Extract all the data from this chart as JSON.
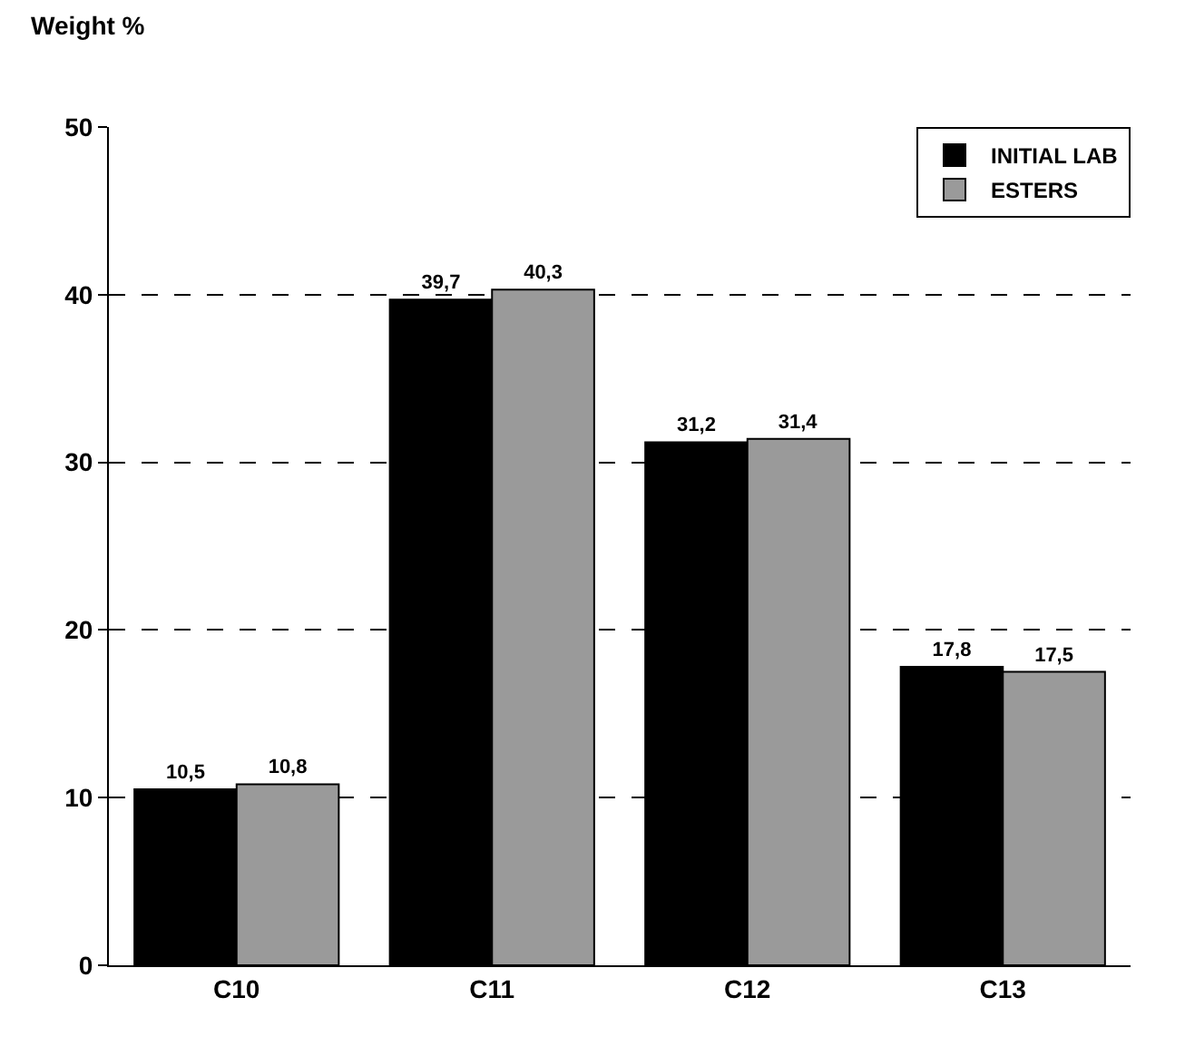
{
  "chart_data": {
    "type": "bar",
    "ylabel": "Weight %",
    "categories": [
      "C10",
      "C11",
      "C12",
      "C13"
    ],
    "series": [
      {
        "name": "INITIAL LAB",
        "color": "#000000",
        "values": [
          10.5,
          39.7,
          31.2,
          17.8
        ],
        "value_labels": [
          "10,5",
          "39,7",
          "31,2",
          "17,8"
        ]
      },
      {
        "name": "ESTERS",
        "color": "#9a9a9a",
        "values": [
          10.8,
          40.3,
          31.4,
          17.5
        ],
        "value_labels": [
          "10,8",
          "40,3",
          "31,4",
          "17,5"
        ]
      }
    ],
    "ylim": [
      0,
      50
    ],
    "yticks": [
      0,
      10,
      20,
      30,
      40,
      50
    ],
    "grid": "y",
    "legend": "top right"
  }
}
